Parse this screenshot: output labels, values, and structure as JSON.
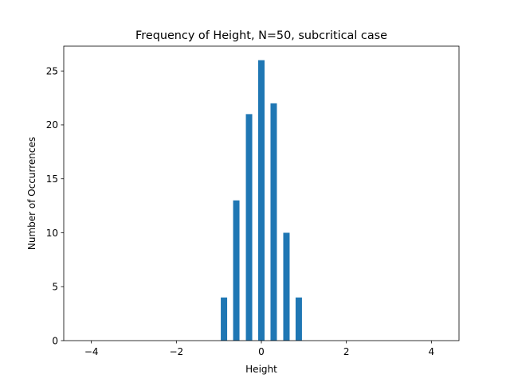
{
  "chart_data": {
    "type": "bar",
    "title": "Frequency of Height, N=50, subcritical case",
    "xlabel": "Height",
    "ylabel": "Number of Occurrences",
    "x": [
      -0.88,
      -0.59,
      -0.29,
      0.0,
      0.29,
      0.59,
      0.88
    ],
    "values": [
      4,
      13,
      21,
      26,
      22,
      10,
      4
    ],
    "bar_width": 0.15,
    "xlim": [
      -4.65,
      4.65
    ],
    "ylim": [
      0,
      27.3
    ],
    "xticks": [
      -4,
      -2,
      0,
      2,
      4
    ],
    "xtick_labels": [
      "−4",
      "−2",
      "0",
      "2",
      "4"
    ],
    "yticks": [
      0,
      5,
      10,
      15,
      20,
      25
    ],
    "ytick_labels": [
      "0",
      "5",
      "10",
      "15",
      "20",
      "25"
    ],
    "grid": false,
    "bar_color": "#1f77b4"
  }
}
